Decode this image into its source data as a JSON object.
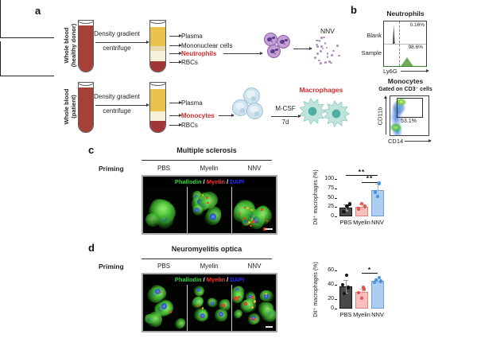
{
  "panel_a": {
    "label": "a",
    "healthy": {
      "side_label_line1": "Whole blood",
      "side_label_line2": "(healthy donor)",
      "process_line1": "Density gradient",
      "process_line2": "centrifuge",
      "fractions": [
        "Plasma",
        "Mononuclear cells",
        "Neutrophils",
        "RBCs"
      ],
      "highlighted_fraction": "Neutrophils",
      "product": "NNV"
    },
    "patient": {
      "side_label_line1": "Whole blood",
      "side_label_line2": "(patient)",
      "process_line1": "Density gradient",
      "process_line2": "centrifuge",
      "fractions": [
        "Plasma",
        "Monocytes",
        "RBCs"
      ],
      "highlighted_fraction": "Monocytes",
      "stimulus_line1": "M-CSF",
      "stimulus_line2": "7d",
      "product": "Macrophages"
    }
  },
  "panel_b": {
    "label": "b",
    "histogram": {
      "title": "Neutrophils",
      "row1_label": "Blank",
      "row1_pct": "0.16%",
      "row2_label": "Sample",
      "row2_pct": "98.6%",
      "xaxis": "Ly6G"
    },
    "flow": {
      "title": "Monocytes",
      "subtitle": "Gated on CD3⁻ cells",
      "gate_pct": "53.1%",
      "yaxis": "CD11b",
      "xaxis": "CD14"
    }
  },
  "panel_c": {
    "label": "c",
    "title": "Multiple sclerosis",
    "priming_label": "Priming",
    "conditions": [
      "PBS",
      "Myelin",
      "NNV"
    ],
    "stain_legend": [
      {
        "text": "Phallodin",
        "color": "#35d93a"
      },
      {
        "text": "Myelin",
        "color": "#ff2f22"
      },
      {
        "text": "DAPI",
        "color": "#2b2bff"
      }
    ]
  },
  "panel_d": {
    "label": "d",
    "title": "Neuromyelitis optica",
    "priming_label": "Priming",
    "conditions": [
      "PBS",
      "Myelin",
      "NNV"
    ],
    "stain_legend": [
      {
        "text": "Phallodin",
        "color": "#35d93a"
      },
      {
        "text": "Myelin",
        "color": "#ff2f22"
      },
      {
        "text": "DAPI",
        "color": "#2b2bff"
      }
    ]
  },
  "accent_colors": {
    "highlight_red": "#d22b2b",
    "nnv_purple": "#b48fc6",
    "macrophage_teal": "#4fae9f"
  },
  "chart_data": [
    {
      "type": "bar",
      "panel": "c",
      "title": "Multiple sclerosis",
      "categories": [
        "PBS",
        "Myelin",
        "NNV"
      ],
      "values": [
        24,
        26,
        70
      ],
      "errors": [
        8,
        7,
        18
      ],
      "points": [
        [
          13,
          28,
          33
        ],
        [
          20,
          27,
          34
        ],
        [
          53,
          65,
          88
        ]
      ],
      "ylabel": "DiI⁺ macrophages (%)",
      "yticks": [
        0,
        25,
        50,
        75,
        100
      ],
      "ylim": [
        0,
        100
      ],
      "significance": [
        {
          "a": 0,
          "b": 2,
          "label": "**"
        },
        {
          "a": 1,
          "b": 2,
          "label": "**"
        }
      ],
      "bar_fill": [
        "#4a4a4a",
        "#f8bfbc",
        "#accef1"
      ],
      "bar_border": [
        "#141414",
        "#e08480",
        "#6d9fd6"
      ],
      "point_colors": [
        "#141414",
        "#e8534e",
        "#4a92e2"
      ],
      "error_colors": [
        "#9a9a9a",
        "#efaeab",
        "#9cc0e8"
      ]
    },
    {
      "type": "bar",
      "panel": "d",
      "title": "Neuromyelitis optica",
      "categories": [
        "PBS",
        "Myelin",
        "NNV"
      ],
      "values": [
        38,
        30,
        46
      ],
      "errors": [
        9,
        5,
        3
      ],
      "points": [
        [
          28,
          36,
          40,
          53
        ],
        [
          21,
          29,
          34,
          36
        ],
        [
          43,
          45,
          47,
          50
        ]
      ],
      "ylabel": "DiI⁺ macrophages (%)",
      "yticks": [
        0,
        20,
        40,
        60
      ],
      "ylim": [
        0,
        60
      ],
      "axis_break": true,
      "significance": [
        {
          "a": 1,
          "b": 2,
          "label": "*"
        }
      ],
      "bar_fill": [
        "#4a4a4a",
        "#f8bfbc",
        "#accef1"
      ],
      "bar_border": [
        "#141414",
        "#e08480",
        "#6d9fd6"
      ],
      "point_colors": [
        "#141414",
        "#e8534e",
        "#4a92e2"
      ],
      "error_colors": [
        "#9a9a9a",
        "#efaeab",
        "#9cc0e8"
      ]
    }
  ]
}
